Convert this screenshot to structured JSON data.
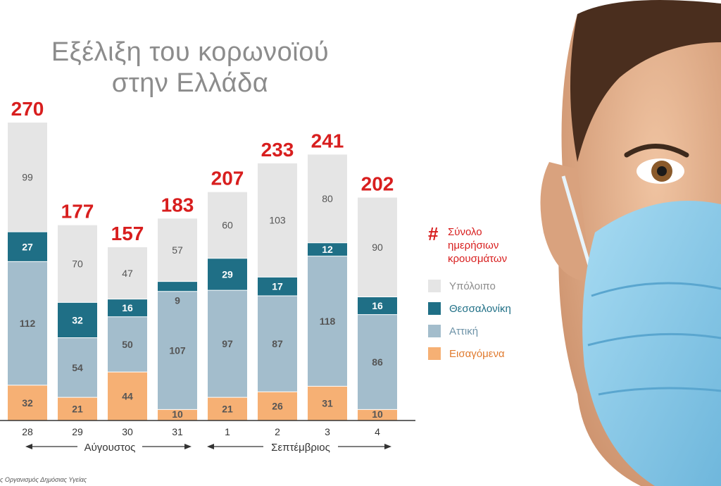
{
  "title_lines": [
    "Εξέλιξη του κορωνοϊού",
    "στην Ελλάδα"
  ],
  "legend": {
    "total_symbol": "#",
    "total_lines": [
      "Σύνολο",
      "ημερήσιων",
      "κρουσμάτων"
    ],
    "items": [
      {
        "label": "Υπόλοιπο",
        "color": "#e5e5e5"
      },
      {
        "label": "Θεσσαλονίκη",
        "color": "#1f6f86"
      },
      {
        "label": "Αττική",
        "color": "#a3bdcc"
      },
      {
        "label": "Εισαγόμενα",
        "color": "#f6b074"
      }
    ]
  },
  "months": [
    "Αύγουστος",
    "Σεπτέμβριος"
  ],
  "source": "ς Οργανισμός Δημόσιας Υγείας",
  "colors": {
    "total": "#d81e1e",
    "label_dark_text": "#555555",
    "label_light_text": "#ffffff",
    "skin": "#e3b08e",
    "mask": "#8ccbe8"
  },
  "chart_data": {
    "type": "bar",
    "stacked": true,
    "categories": [
      "28",
      "29",
      "30",
      "31",
      "1",
      "2",
      "3",
      "4"
    ],
    "series": [
      {
        "name": "Εισαγόμενα",
        "values": [
          32,
          21,
          44,
          10,
          21,
          26,
          31,
          10
        ],
        "labels": [
          "32",
          "21",
          "44",
          "10",
          "21",
          "26",
          "31",
          "10"
        ]
      },
      {
        "name": "Αττική",
        "values": [
          112,
          54,
          50,
          107,
          97,
          87,
          118,
          86
        ],
        "labels": [
          "112",
          "54",
          "50",
          "107",
          "97",
          "87",
          "118",
          "86"
        ]
      },
      {
        "name": "Θεσσαλονίκη",
        "values": [
          27,
          32,
          16,
          9,
          29,
          17,
          12,
          16
        ],
        "labels": [
          "27",
          "32",
          "16",
          "9",
          "29",
          "17",
          "12",
          "16"
        ]
      },
      {
        "name": "Υπόλοιπο",
        "values": [
          99,
          70,
          47,
          57,
          60,
          103,
          80,
          90
        ],
        "labels": [
          "99",
          "70",
          "47",
          "57",
          "60",
          "103",
          "80",
          "90"
        ]
      }
    ],
    "totals": [
      270,
      177,
      157,
      183,
      207,
      233,
      241,
      202
    ],
    "ylim": [
      0,
      270
    ],
    "grid": false,
    "legend_position": "right"
  }
}
